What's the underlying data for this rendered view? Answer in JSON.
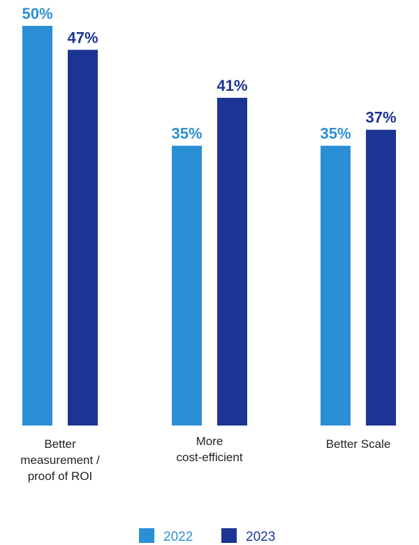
{
  "chart_data": {
    "type": "bar",
    "categories": [
      [
        "Better",
        "measurement /",
        "proof of ROI"
      ],
      [
        "More",
        "cost-efficient"
      ],
      [
        "Better Scale"
      ]
    ],
    "series": [
      {
        "name": "2022",
        "values": [
          50,
          35,
          35
        ],
        "labels": [
          "50%",
          "35%",
          "35%"
        ],
        "color": "#2b8fd6"
      },
      {
        "name": "2023",
        "values": [
          47,
          41,
          37
        ],
        "labels": [
          "47%",
          "41%",
          "37%"
        ],
        "color": "#1c3494"
      }
    ],
    "ylim": [
      0,
      50
    ],
    "grid": false,
    "legend": "bottom-center"
  }
}
